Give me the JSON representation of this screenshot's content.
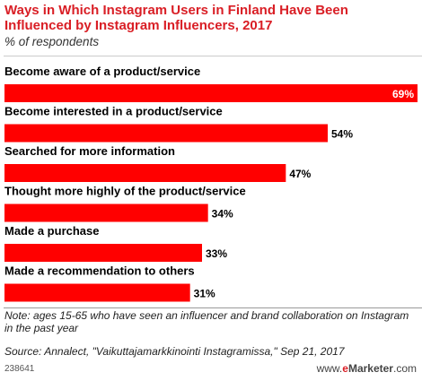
{
  "chart_data": {
    "type": "bar",
    "orientation": "horizontal",
    "title": "Ways in Which Instagram Users in Finland Have Been Influenced by Instagram Influencers, 2017",
    "subtitle": "% of respondents",
    "categories": [
      "Become aware of a product/service",
      "Become interested in a product/service",
      "Searched for more information",
      "Thought more highly of the product/service",
      "Made a purchase",
      "Made a recommendation to others"
    ],
    "values": [
      69,
      54,
      47,
      34,
      33,
      31
    ],
    "value_labels": [
      "69%",
      "54%",
      "47%",
      "34%",
      "33%",
      "31%"
    ],
    "xlim": [
      0,
      69
    ],
    "bar_color": "#ff0000",
    "grid": false
  },
  "footer": {
    "note": "Note: ages 15-65 who have seen an influencer and brand collaboration on Instagram in the past year",
    "source": "Source: Annalect, \"Vaikuttajamarkkinointi Instagramissa,\" Sep 21, 2017",
    "chart_id": "238641",
    "brand_prefix": "www.",
    "brand_e": "e",
    "brand_name": "Marketer",
    "brand_suffix": ".com"
  }
}
